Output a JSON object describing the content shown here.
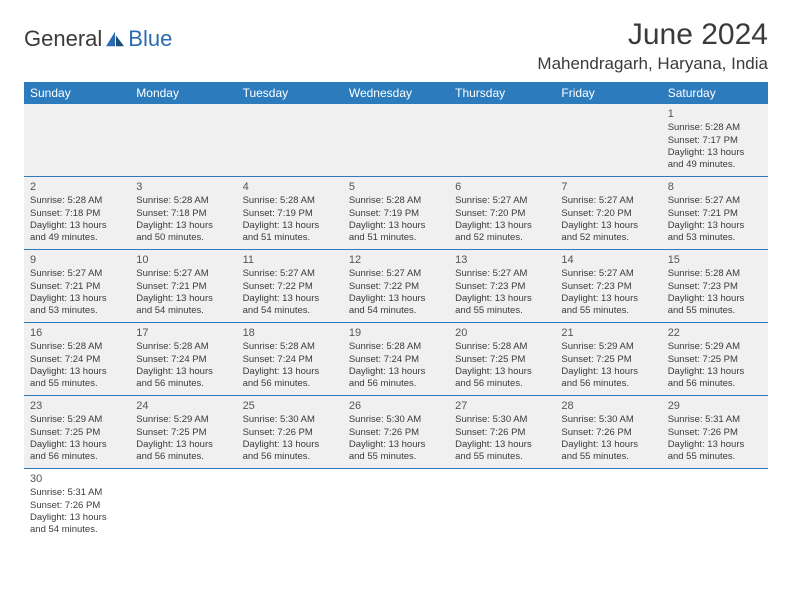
{
  "logo": {
    "general": "General",
    "blue": "Blue"
  },
  "title": "June 2024",
  "location": "Mahendragarh, Haryana, India",
  "colors": {
    "header_bg": "#2b7bbd",
    "header_text": "#ffffff",
    "border": "#2b7bbd",
    "gray_bg": "#f0f0f0",
    "text": "#3b3b3b"
  },
  "day_names": [
    "Sunday",
    "Monday",
    "Tuesday",
    "Wednesday",
    "Thursday",
    "Friday",
    "Saturday"
  ],
  "weeks": [
    [
      null,
      null,
      null,
      null,
      null,
      null,
      {
        "n": "1",
        "sr": "5:28 AM",
        "ss": "7:17 PM",
        "d1": "13 hours",
        "d2": "and 49 minutes."
      }
    ],
    [
      {
        "n": "2",
        "sr": "5:28 AM",
        "ss": "7:18 PM",
        "d1": "13 hours",
        "d2": "and 49 minutes."
      },
      {
        "n": "3",
        "sr": "5:28 AM",
        "ss": "7:18 PM",
        "d1": "13 hours",
        "d2": "and 50 minutes."
      },
      {
        "n": "4",
        "sr": "5:28 AM",
        "ss": "7:19 PM",
        "d1": "13 hours",
        "d2": "and 51 minutes."
      },
      {
        "n": "5",
        "sr": "5:28 AM",
        "ss": "7:19 PM",
        "d1": "13 hours",
        "d2": "and 51 minutes."
      },
      {
        "n": "6",
        "sr": "5:27 AM",
        "ss": "7:20 PM",
        "d1": "13 hours",
        "d2": "and 52 minutes."
      },
      {
        "n": "7",
        "sr": "5:27 AM",
        "ss": "7:20 PM",
        "d1": "13 hours",
        "d2": "and 52 minutes."
      },
      {
        "n": "8",
        "sr": "5:27 AM",
        "ss": "7:21 PM",
        "d1": "13 hours",
        "d2": "and 53 minutes."
      }
    ],
    [
      {
        "n": "9",
        "sr": "5:27 AM",
        "ss": "7:21 PM",
        "d1": "13 hours",
        "d2": "and 53 minutes."
      },
      {
        "n": "10",
        "sr": "5:27 AM",
        "ss": "7:21 PM",
        "d1": "13 hours",
        "d2": "and 54 minutes."
      },
      {
        "n": "11",
        "sr": "5:27 AM",
        "ss": "7:22 PM",
        "d1": "13 hours",
        "d2": "and 54 minutes."
      },
      {
        "n": "12",
        "sr": "5:27 AM",
        "ss": "7:22 PM",
        "d1": "13 hours",
        "d2": "and 54 minutes."
      },
      {
        "n": "13",
        "sr": "5:27 AM",
        "ss": "7:23 PM",
        "d1": "13 hours",
        "d2": "and 55 minutes."
      },
      {
        "n": "14",
        "sr": "5:27 AM",
        "ss": "7:23 PM",
        "d1": "13 hours",
        "d2": "and 55 minutes."
      },
      {
        "n": "15",
        "sr": "5:28 AM",
        "ss": "7:23 PM",
        "d1": "13 hours",
        "d2": "and 55 minutes."
      }
    ],
    [
      {
        "n": "16",
        "sr": "5:28 AM",
        "ss": "7:24 PM",
        "d1": "13 hours",
        "d2": "and 55 minutes."
      },
      {
        "n": "17",
        "sr": "5:28 AM",
        "ss": "7:24 PM",
        "d1": "13 hours",
        "d2": "and 56 minutes."
      },
      {
        "n": "18",
        "sr": "5:28 AM",
        "ss": "7:24 PM",
        "d1": "13 hours",
        "d2": "and 56 minutes."
      },
      {
        "n": "19",
        "sr": "5:28 AM",
        "ss": "7:24 PM",
        "d1": "13 hours",
        "d2": "and 56 minutes."
      },
      {
        "n": "20",
        "sr": "5:28 AM",
        "ss": "7:25 PM",
        "d1": "13 hours",
        "d2": "and 56 minutes."
      },
      {
        "n": "21",
        "sr": "5:29 AM",
        "ss": "7:25 PM",
        "d1": "13 hours",
        "d2": "and 56 minutes."
      },
      {
        "n": "22",
        "sr": "5:29 AM",
        "ss": "7:25 PM",
        "d1": "13 hours",
        "d2": "and 56 minutes."
      }
    ],
    [
      {
        "n": "23",
        "sr": "5:29 AM",
        "ss": "7:25 PM",
        "d1": "13 hours",
        "d2": "and 56 minutes."
      },
      {
        "n": "24",
        "sr": "5:29 AM",
        "ss": "7:25 PM",
        "d1": "13 hours",
        "d2": "and 56 minutes."
      },
      {
        "n": "25",
        "sr": "5:30 AM",
        "ss": "7:26 PM",
        "d1": "13 hours",
        "d2": "and 56 minutes."
      },
      {
        "n": "26",
        "sr": "5:30 AM",
        "ss": "7:26 PM",
        "d1": "13 hours",
        "d2": "and 55 minutes."
      },
      {
        "n": "27",
        "sr": "5:30 AM",
        "ss": "7:26 PM",
        "d1": "13 hours",
        "d2": "and 55 minutes."
      },
      {
        "n": "28",
        "sr": "5:30 AM",
        "ss": "7:26 PM",
        "d1": "13 hours",
        "d2": "and 55 minutes."
      },
      {
        "n": "29",
        "sr": "5:31 AM",
        "ss": "7:26 PM",
        "d1": "13 hours",
        "d2": "and 55 minutes."
      }
    ],
    [
      {
        "n": "30",
        "sr": "5:31 AM",
        "ss": "7:26 PM",
        "d1": "13 hours",
        "d2": "and 54 minutes."
      },
      null,
      null,
      null,
      null,
      null,
      null
    ]
  ],
  "labels": {
    "sunrise": "Sunrise:",
    "sunset": "Sunset:",
    "daylight": "Daylight:"
  }
}
